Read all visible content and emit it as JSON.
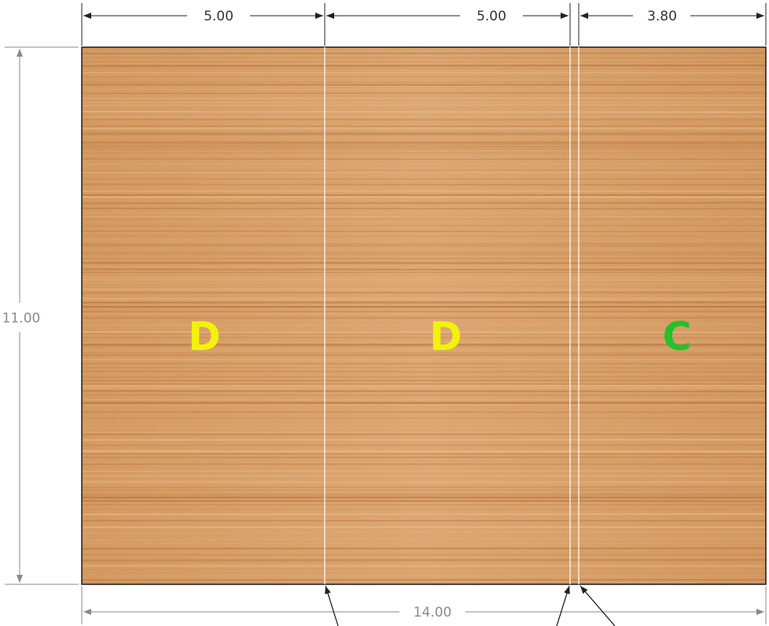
{
  "dimensions": {
    "top": [
      {
        "label": "5.00"
      },
      {
        "label": "5.00"
      },
      {
        "label": "3.80"
      }
    ],
    "height": {
      "label": "11.00"
    },
    "overall_width": {
      "label": "14.00"
    }
  },
  "zones": [
    {
      "label": "D",
      "color": "#f2f20a"
    },
    {
      "label": "D",
      "color": "#f2f20a"
    },
    {
      "label": "C",
      "color": "#22c22a"
    }
  ],
  "colors": {
    "wood_base": "#d9a06a",
    "wood_grain_dark": "#b8773f",
    "wood_grain_light": "#e8bf92",
    "dimension_line_dark": "#222222",
    "dimension_line_grey": "#8a8a8a",
    "cut_line": "#f0e6dc"
  }
}
